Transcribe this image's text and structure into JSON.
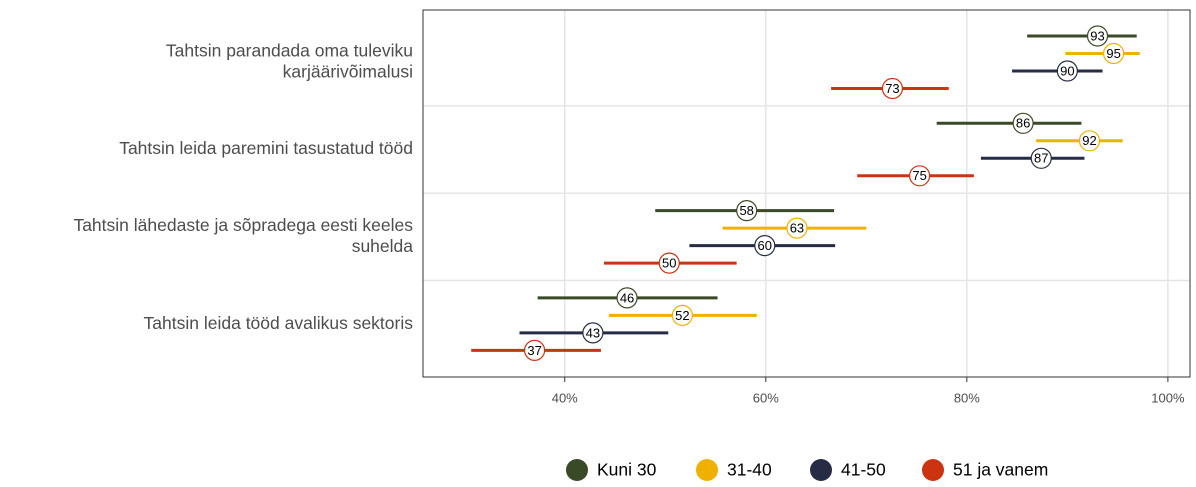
{
  "chart_data": {
    "type": "interval-dot",
    "categories": [
      [
        "Tahtsin parandada oma tuleviku",
        "karjäärivõimalusi"
      ],
      [
        "Tahtsin leida paremini tasustatud tööd"
      ],
      [
        "Tahtsin lähedaste ja sõpradega eesti keeles",
        "suhelda"
      ],
      [
        "Tahtsin leida tööd avalikus sektoris"
      ]
    ],
    "series": [
      {
        "name": "Kuni 30",
        "color": "#3a4a27",
        "values": [
          93.0,
          85.6,
          58.1,
          46.2
        ],
        "lo": [
          86.0,
          77.0,
          49.0,
          37.3
        ],
        "hi": [
          96.9,
          91.4,
          66.8,
          55.2
        ]
      },
      {
        "name": "31-40",
        "color": "#f0b000",
        "values": [
          94.6,
          92.2,
          63.1,
          51.7
        ],
        "lo": [
          89.8,
          86.9,
          55.7,
          44.4
        ],
        "hi": [
          97.2,
          95.5,
          70.0,
          59.1
        ]
      },
      {
        "name": "41-50",
        "color": "#262c45",
        "values": [
          90.0,
          87.4,
          59.9,
          42.8
        ],
        "lo": [
          84.5,
          81.4,
          52.4,
          35.5
        ],
        "hi": [
          93.5,
          91.7,
          66.9,
          50.3
        ]
      },
      {
        "name": "51 ja vanem",
        "color": "#cc3311",
        "values": [
          72.6,
          75.3,
          50.4,
          37.0
        ],
        "lo": [
          66.5,
          69.1,
          43.9,
          30.7
        ],
        "hi": [
          78.2,
          80.7,
          57.1,
          43.6
        ]
      }
    ],
    "value_labels": [
      [
        "93",
        "86",
        "58",
        "46"
      ],
      [
        "95",
        "92",
        "63",
        "52"
      ],
      [
        "90",
        "87",
        "60",
        "43"
      ],
      [
        "73",
        "75",
        "50",
        "37"
      ]
    ],
    "xlim": [
      25.9,
      102.2
    ],
    "xticks": [
      {
        "value": 40,
        "label": "40%"
      },
      {
        "value": 60,
        "label": "60%"
      },
      {
        "value": 80,
        "label": "80%"
      },
      {
        "value": 100,
        "label": "100%"
      }
    ],
    "grid": true,
    "legend": "bottom"
  }
}
